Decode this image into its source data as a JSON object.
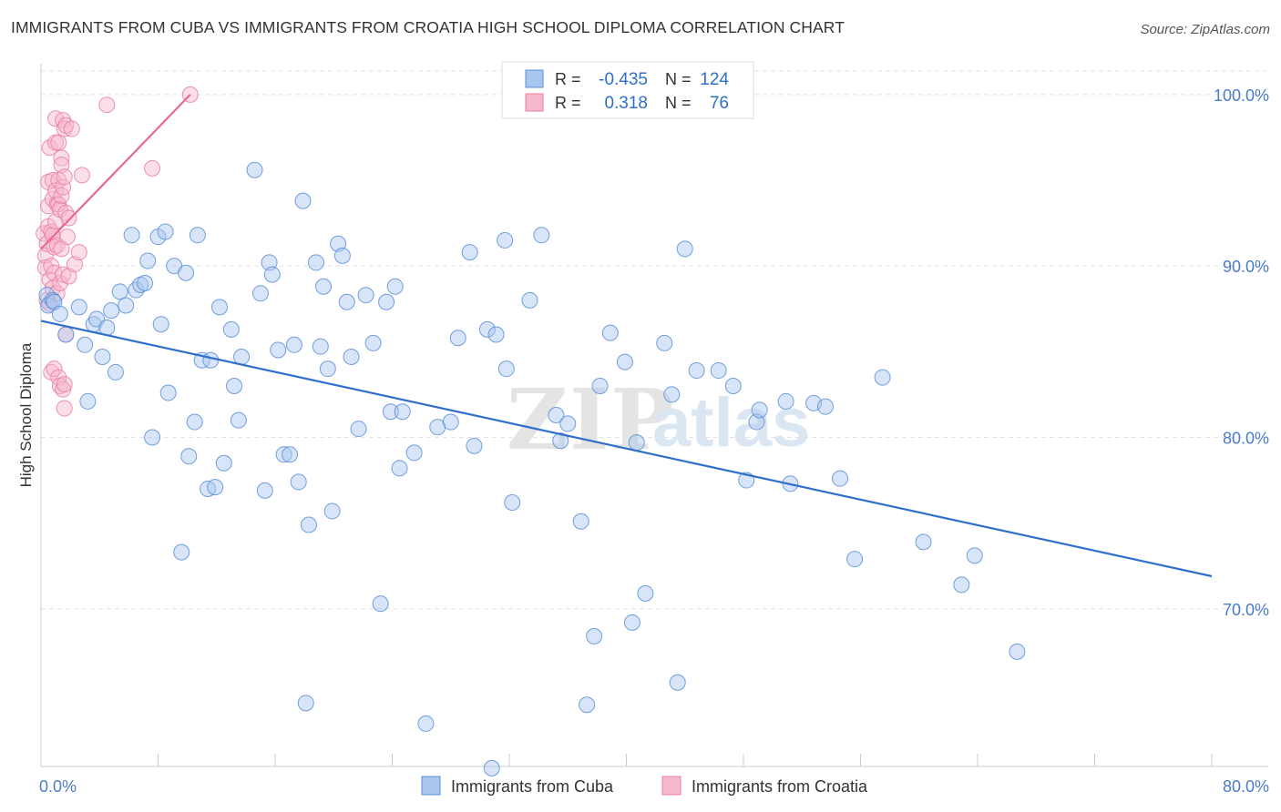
{
  "header": {
    "title": "IMMIGRANTS FROM CUBA VS IMMIGRANTS FROM CROATIA HIGH SCHOOL DIPLOMA CORRELATION CHART",
    "source": "Source: ZipAtlas.com"
  },
  "watermark": {
    "zip": "ZIP",
    "atlas": "atlas"
  },
  "legend_box": {
    "rows": [
      {
        "r_label": "R =",
        "r_value": "-0.435",
        "n_label": "N =",
        "n_value": "124"
      },
      {
        "r_label": "R =",
        "r_value": "0.318",
        "n_label": "N =",
        "n_value": "76"
      }
    ]
  },
  "colors": {
    "cuba_fill": "#a9c6ef",
    "cuba_stroke": "#5b8fd6",
    "cuba_line": "#2f6fcc",
    "croatia_fill": "#f6b8cb",
    "croatia_stroke": "#e97fa3",
    "croatia_line": "#e86a92",
    "tick_text": "#4a7cc9",
    "grid": "#e3e3e3"
  },
  "chart_data": {
    "type": "scatter",
    "title": "IMMIGRANTS FROM CUBA VS IMMIGRANTS FROM CROATIA HIGH SCHOOL DIPLOMA CORRELATION CHART",
    "xlabel": "",
    "ylabel": "High School Diploma",
    "xlim": [
      0,
      80
    ],
    "ylim": [
      60.8,
      101.8
    ],
    "x_tick_labels": [
      "0.0%",
      "80.0%"
    ],
    "y_ticks": [
      70,
      80,
      90,
      100
    ],
    "y_tick_labels": [
      "70.0%",
      "80.0%",
      "90.0%",
      "100.0%"
    ],
    "grid": true,
    "legend_position": "bottom-center",
    "series": [
      {
        "name": "Immigrants from Cuba",
        "trend": {
          "x": [
            0,
            80
          ],
          "y": [
            86.8,
            71.9
          ]
        },
        "points": [
          [
            0.4,
            88.3
          ],
          [
            0.5,
            87.7
          ],
          [
            0.8,
            88.0
          ],
          [
            0.9,
            87.9
          ],
          [
            1.3,
            87.2
          ],
          [
            1.7,
            86.0
          ],
          [
            2.6,
            87.6
          ],
          [
            3.0,
            85.4
          ],
          [
            3.2,
            82.1
          ],
          [
            3.6,
            86.6
          ],
          [
            3.8,
            86.9
          ],
          [
            4.2,
            84.7
          ],
          [
            4.5,
            86.4
          ],
          [
            4.8,
            87.4
          ],
          [
            5.1,
            83.8
          ],
          [
            5.4,
            88.5
          ],
          [
            5.8,
            87.7
          ],
          [
            6.2,
            91.8
          ],
          [
            6.5,
            88.6
          ],
          [
            6.8,
            88.9
          ],
          [
            7.1,
            89.0
          ],
          [
            7.3,
            90.3
          ],
          [
            7.6,
            80.0
          ],
          [
            8.0,
            91.7
          ],
          [
            8.2,
            86.6
          ],
          [
            8.5,
            92.0
          ],
          [
            8.7,
            82.6
          ],
          [
            9.1,
            90.0
          ],
          [
            9.6,
            73.3
          ],
          [
            9.9,
            89.6
          ],
          [
            10.1,
            78.9
          ],
          [
            10.5,
            80.9
          ],
          [
            10.7,
            91.8
          ],
          [
            11.0,
            84.5
          ],
          [
            11.4,
            77.0
          ],
          [
            11.6,
            84.5
          ],
          [
            11.9,
            77.1
          ],
          [
            12.2,
            87.6
          ],
          [
            12.5,
            78.5
          ],
          [
            13.0,
            86.3
          ],
          [
            13.2,
            83.0
          ],
          [
            13.5,
            81.0
          ],
          [
            13.7,
            84.7
          ],
          [
            14.6,
            95.6
          ],
          [
            15.0,
            88.4
          ],
          [
            15.3,
            76.9
          ],
          [
            15.6,
            90.2
          ],
          [
            15.8,
            89.5
          ],
          [
            16.2,
            85.1
          ],
          [
            16.6,
            79.0
          ],
          [
            17.0,
            79.0
          ],
          [
            17.3,
            85.4
          ],
          [
            17.6,
            77.4
          ],
          [
            17.9,
            93.8
          ],
          [
            18.1,
            64.5
          ],
          [
            18.3,
            74.9
          ],
          [
            18.8,
            90.2
          ],
          [
            19.1,
            85.3
          ],
          [
            19.3,
            88.8
          ],
          [
            19.6,
            84.0
          ],
          [
            19.9,
            75.7
          ],
          [
            20.3,
            91.3
          ],
          [
            20.6,
            90.6
          ],
          [
            20.9,
            87.9
          ],
          [
            21.2,
            84.7
          ],
          [
            21.7,
            80.5
          ],
          [
            22.2,
            88.3
          ],
          [
            22.7,
            85.5
          ],
          [
            23.2,
            70.3
          ],
          [
            23.6,
            87.9
          ],
          [
            23.9,
            81.5
          ],
          [
            24.2,
            88.8
          ],
          [
            24.5,
            78.2
          ],
          [
            24.7,
            81.5
          ],
          [
            25.5,
            79.1
          ],
          [
            26.3,
            63.3
          ],
          [
            27.1,
            80.6
          ],
          [
            28.0,
            80.9
          ],
          [
            28.5,
            85.8
          ],
          [
            29.3,
            90.8
          ],
          [
            29.6,
            79.5
          ],
          [
            30.5,
            86.3
          ],
          [
            30.8,
            60.7
          ],
          [
            31.1,
            86.0
          ],
          [
            31.7,
            91.5
          ],
          [
            31.8,
            84.0
          ],
          [
            32.2,
            76.2
          ],
          [
            33.4,
            88.0
          ],
          [
            34.2,
            91.8
          ],
          [
            35.2,
            81.3
          ],
          [
            35.5,
            79.8
          ],
          [
            36.0,
            80.8
          ],
          [
            36.9,
            75.1
          ],
          [
            37.3,
            64.4
          ],
          [
            37.8,
            68.4
          ],
          [
            38.2,
            83.0
          ],
          [
            38.9,
            86.1
          ],
          [
            39.9,
            84.4
          ],
          [
            40.4,
            69.2
          ],
          [
            40.7,
            79.7
          ],
          [
            41.3,
            70.9
          ],
          [
            42.6,
            85.5
          ],
          [
            43.1,
            82.5
          ],
          [
            43.5,
            65.7
          ],
          [
            44.0,
            91.0
          ],
          [
            44.8,
            83.9
          ],
          [
            46.3,
            83.9
          ],
          [
            47.3,
            83.0
          ],
          [
            48.2,
            77.5
          ],
          [
            48.9,
            80.9
          ],
          [
            49.1,
            81.6
          ],
          [
            50.9,
            82.1
          ],
          [
            51.2,
            77.3
          ],
          [
            52.8,
            82.0
          ],
          [
            53.6,
            81.8
          ],
          [
            54.6,
            77.6
          ],
          [
            55.6,
            72.9
          ],
          [
            57.5,
            83.5
          ],
          [
            60.3,
            73.9
          ],
          [
            62.9,
            71.4
          ],
          [
            63.8,
            73.1
          ],
          [
            66.7,
            67.5
          ]
        ]
      },
      {
        "name": "Immigrants from Croatia",
        "trend": {
          "x": [
            0,
            10.2
          ],
          "y": [
            91.0,
            100.0
          ]
        },
        "points": [
          [
            0.2,
            91.9
          ],
          [
            0.3,
            90.6
          ],
          [
            0.3,
            89.9
          ],
          [
            0.4,
            88.0
          ],
          [
            0.4,
            91.3
          ],
          [
            0.5,
            92.3
          ],
          [
            0.5,
            93.5
          ],
          [
            0.5,
            94.9
          ],
          [
            0.6,
            96.9
          ],
          [
            0.6,
            89.2
          ],
          [
            0.6,
            87.8
          ],
          [
            0.7,
            92.0
          ],
          [
            0.7,
            90.0
          ],
          [
            0.7,
            83.8
          ],
          [
            0.8,
            91.8
          ],
          [
            0.8,
            93.9
          ],
          [
            0.8,
            95.0
          ],
          [
            0.8,
            88.7
          ],
          [
            0.9,
            91.1
          ],
          [
            0.9,
            89.6
          ],
          [
            0.9,
            84.0
          ],
          [
            1.0,
            92.6
          ],
          [
            1.0,
            94.4
          ],
          [
            1.0,
            97.2
          ],
          [
            1.0,
            98.6
          ],
          [
            1.1,
            93.6
          ],
          [
            1.1,
            91.2
          ],
          [
            1.1,
            88.4
          ],
          [
            1.2,
            93.6
          ],
          [
            1.2,
            95.0
          ],
          [
            1.2,
            97.2
          ],
          [
            1.2,
            83.5
          ],
          [
            1.3,
            93.3
          ],
          [
            1.3,
            89.0
          ],
          [
            1.3,
            83.0
          ],
          [
            1.4,
            96.3
          ],
          [
            1.4,
            95.9
          ],
          [
            1.4,
            94.1
          ],
          [
            1.4,
            91.0
          ],
          [
            1.5,
            98.5
          ],
          [
            1.5,
            94.6
          ],
          [
            1.5,
            89.5
          ],
          [
            1.5,
            82.8
          ],
          [
            1.6,
            98.0
          ],
          [
            1.6,
            95.2
          ],
          [
            1.6,
            83.1
          ],
          [
            1.6,
            81.7
          ],
          [
            1.7,
            98.2
          ],
          [
            1.7,
            93.1
          ],
          [
            1.7,
            86.0
          ],
          [
            1.8,
            91.7
          ],
          [
            1.9,
            92.8
          ],
          [
            1.9,
            89.4
          ],
          [
            2.1,
            98.0
          ],
          [
            2.3,
            90.1
          ],
          [
            2.6,
            90.8
          ],
          [
            2.8,
            95.3
          ],
          [
            4.5,
            99.4
          ],
          [
            7.6,
            95.7
          ],
          [
            10.2,
            100.0
          ]
        ]
      }
    ]
  },
  "bottom_legend": {
    "items": [
      {
        "label": "Immigrants from Cuba"
      },
      {
        "label": "Immigrants from Croatia"
      }
    ]
  }
}
